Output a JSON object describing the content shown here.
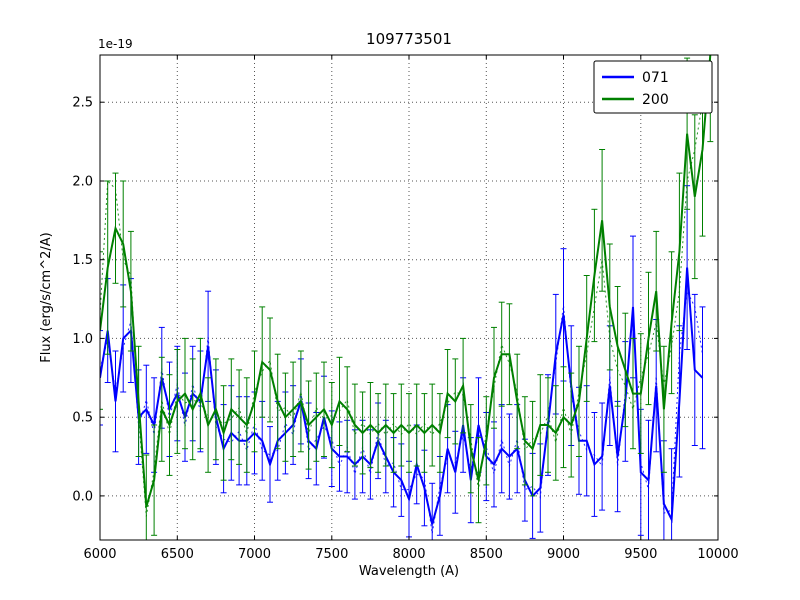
{
  "figure": {
    "title": "109773501",
    "xlabel": "Wavelength (A)",
    "ylabel": "Flux (erg/s/cm^2/A)",
    "offset_text": "1e-19",
    "background": "#ffffff",
    "grid_color": "#555555",
    "spine_color": "#000000"
  },
  "legend": {
    "position": "upper right",
    "entries": [
      {
        "label": "071",
        "color": "#0000ff"
      },
      {
        "label": "200",
        "color": "#008000"
      }
    ]
  },
  "chart_data": {
    "type": "line",
    "title": "109773501",
    "xlabel": "Wavelength (A)",
    "ylabel": "Flux (erg/s/cm^2/A)",
    "y_scale_factor": "1e-19",
    "xlim": [
      6000,
      10000
    ],
    "ylim": [
      -0.28,
      2.8
    ],
    "xticks": [
      6000,
      6500,
      7000,
      7500,
      8000,
      8500,
      9000,
      9500,
      10000
    ],
    "yticks": [
      0.0,
      0.5,
      1.0,
      1.5,
      2.0,
      2.5
    ],
    "ytick_labels": [
      "0.0",
      "0.5",
      "1.0",
      "1.5",
      "2.0",
      "2.5"
    ],
    "grid": true,
    "legend_position": "upper right",
    "series": [
      {
        "name": "071",
        "color": "#0000ff",
        "x_start": 6000,
        "x_step": 50,
        "values": [
          0.75,
          1.05,
          0.6,
          1.0,
          1.05,
          0.5,
          0.55,
          0.45,
          0.75,
          0.55,
          0.65,
          0.5,
          0.65,
          0.6,
          0.95,
          0.5,
          0.3,
          0.4,
          0.35,
          0.35,
          0.4,
          0.35,
          0.2,
          0.35,
          0.4,
          0.45,
          0.6,
          0.35,
          0.3,
          0.5,
          0.3,
          0.25,
          0.25,
          0.2,
          0.25,
          0.2,
          0.35,
          0.25,
          0.15,
          0.1,
          -0.02,
          0.2,
          0.05,
          -0.18,
          0.0,
          0.3,
          0.15,
          0.45,
          0.1,
          0.45,
          0.25,
          0.2,
          0.3,
          0.25,
          0.3,
          0.1,
          0.0,
          0.05,
          0.45,
          0.9,
          1.15,
          0.7,
          0.35,
          0.35,
          0.2,
          0.25,
          0.7,
          0.25,
          0.6,
          1.2,
          0.15,
          0.1,
          0.7,
          -0.05,
          -0.15,
          0.6,
          1.45,
          0.8,
          0.75
        ],
        "errors": [
          0.3,
          0.33,
          0.32,
          0.34,
          0.33,
          0.3,
          0.28,
          0.3,
          0.32,
          0.3,
          0.3,
          0.28,
          0.3,
          0.32,
          0.35,
          0.3,
          0.28,
          0.3,
          0.28,
          0.28,
          0.26,
          0.25,
          0.24,
          0.25,
          0.26,
          0.25,
          0.27,
          0.24,
          0.23,
          0.26,
          0.24,
          0.22,
          0.23,
          0.22,
          0.23,
          0.22,
          0.24,
          0.23,
          0.22,
          0.23,
          0.24,
          0.25,
          0.24,
          0.26,
          0.25,
          0.28,
          0.26,
          0.3,
          0.27,
          0.3,
          0.28,
          0.27,
          0.28,
          0.27,
          0.28,
          0.26,
          0.27,
          0.28,
          0.32,
          0.38,
          0.42,
          0.38,
          0.34,
          0.35,
          0.33,
          0.34,
          0.38,
          0.35,
          0.38,
          0.45,
          0.4,
          0.38,
          0.42,
          0.4,
          0.45,
          0.48,
          0.52,
          0.48,
          0.45
        ],
        "raw_values": [
          0.81,
          0.99,
          0.66,
          0.94,
          1.11,
          0.44,
          0.61,
          0.39,
          0.81,
          0.49,
          0.71,
          0.44,
          0.71,
          0.54,
          1.01,
          0.44,
          0.36,
          0.34,
          0.41,
          0.29,
          0.46,
          0.29,
          0.26,
          0.29,
          0.46,
          0.39,
          0.66,
          0.29,
          0.36,
          0.44,
          0.36,
          0.19,
          0.31,
          0.14,
          0.31,
          0.14,
          0.41,
          0.19,
          0.21,
          0.04,
          0.04,
          0.14,
          0.11,
          -0.24,
          0.06,
          0.24,
          0.21,
          0.39,
          0.16,
          0.39,
          0.31,
          0.14,
          0.36,
          0.19,
          0.36,
          0.04,
          0.06,
          -0.01,
          0.51,
          0.84,
          1.21,
          0.64,
          0.41,
          0.29,
          0.26,
          0.19,
          0.76,
          0.19,
          0.66,
          1.14,
          0.21,
          0.04,
          0.76,
          -0.11,
          -0.09,
          0.9,
          1.3,
          1.2,
          0.9
        ]
      },
      {
        "name": "200",
        "color": "#008000",
        "x_start": 6000,
        "x_step": 50,
        "values": [
          1.05,
          1.45,
          1.7,
          1.6,
          1.3,
          0.6,
          -0.07,
          0.1,
          0.55,
          0.45,
          0.6,
          0.65,
          0.55,
          0.65,
          0.45,
          0.55,
          0.4,
          0.55,
          0.5,
          0.45,
          0.6,
          0.85,
          0.8,
          0.6,
          0.5,
          0.55,
          0.6,
          0.45,
          0.5,
          0.55,
          0.45,
          0.6,
          0.55,
          0.45,
          0.4,
          0.45,
          0.4,
          0.45,
          0.4,
          0.45,
          0.4,
          0.45,
          0.4,
          0.45,
          0.4,
          0.65,
          0.6,
          0.7,
          0.3,
          0.1,
          0.35,
          0.75,
          0.9,
          0.9,
          0.6,
          0.35,
          0.3,
          0.45,
          0.45,
          0.4,
          0.5,
          0.45,
          0.6,
          1.0,
          1.4,
          1.75,
          1.2,
          0.95,
          0.8,
          0.65,
          0.65,
          1.0,
          1.3,
          0.55,
          1.1,
          1.55,
          2.3,
          1.9,
          2.2,
          2.8
        ],
        "errors": [
          0.5,
          0.55,
          0.35,
          0.4,
          0.38,
          0.35,
          0.33,
          0.35,
          0.33,
          0.32,
          0.33,
          0.35,
          0.32,
          0.35,
          0.3,
          0.32,
          0.3,
          0.32,
          0.3,
          0.3,
          0.32,
          0.35,
          0.33,
          0.3,
          0.28,
          0.3,
          0.32,
          0.28,
          0.28,
          0.3,
          0.27,
          0.28,
          0.27,
          0.26,
          0.26,
          0.27,
          0.25,
          0.26,
          0.25,
          0.26,
          0.25,
          0.26,
          0.25,
          0.26,
          0.25,
          0.28,
          0.27,
          0.3,
          0.28,
          0.27,
          0.28,
          0.32,
          0.33,
          0.32,
          0.3,
          0.28,
          0.3,
          0.32,
          0.3,
          0.3,
          0.32,
          0.33,
          0.35,
          0.4,
          0.42,
          0.45,
          0.4,
          0.38,
          0.36,
          0.35,
          0.38,
          0.42,
          0.38,
          0.4,
          0.45,
          0.5,
          0.48,
          0.52,
          0.55,
          0.55
        ],
        "raw_values": [
          1.15,
          2.0,
          1.95,
          1.5,
          1.4,
          0.5,
          -0.13,
          0.16,
          0.61,
          0.39,
          0.66,
          0.59,
          0.61,
          0.59,
          0.51,
          0.49,
          0.46,
          0.49,
          0.56,
          0.39,
          0.66,
          0.79,
          0.86,
          0.54,
          0.56,
          0.49,
          0.66,
          0.39,
          0.56,
          0.49,
          0.51,
          0.54,
          0.61,
          0.39,
          0.46,
          0.39,
          0.46,
          0.39,
          0.46,
          0.39,
          0.46,
          0.39,
          0.46,
          0.39,
          0.46,
          0.59,
          0.66,
          0.64,
          0.36,
          0.04,
          0.41,
          0.69,
          0.96,
          0.84,
          0.66,
          0.29,
          0.36,
          0.39,
          0.51,
          0.34,
          0.56,
          0.39,
          0.66,
          0.9,
          1.2,
          1.5,
          1.0,
          0.8,
          0.7,
          0.55,
          0.75,
          0.9,
          1.1,
          0.7,
          0.95,
          1.3,
          2.0,
          2.2,
          2.5,
          2.6
        ]
      }
    ]
  }
}
